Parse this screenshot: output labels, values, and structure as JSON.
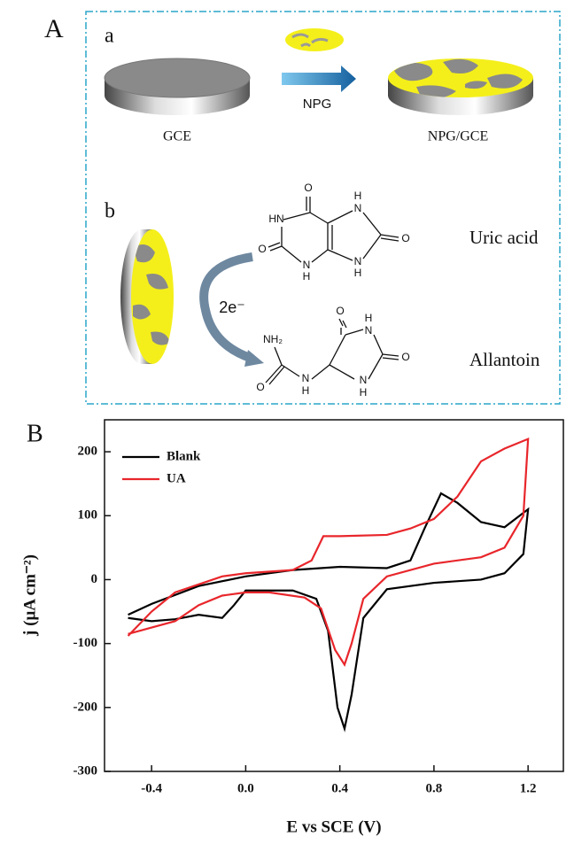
{
  "panel_a": {
    "label": "A",
    "a": {
      "label": "a",
      "left_electrode": "GCE",
      "arrow": "NPG",
      "right_electrode": "NPG/GCE"
    },
    "b": {
      "label": "b",
      "electrons": "2e⁻",
      "uric_acid": {
        "name": "Uric acid",
        "atoms": [
          "O",
          "HN",
          "O",
          "N",
          "H",
          "H",
          "N",
          "O",
          "N",
          "H"
        ]
      },
      "allantoin": {
        "name": "Allantoin",
        "atoms": [
          "NH₂",
          "O",
          "N",
          "H",
          "O",
          "H",
          "N",
          "O",
          "N",
          "H"
        ]
      }
    }
  },
  "chart_data": {
    "type": "line",
    "panel_label": "B",
    "x_label": "E vs SCE (V)",
    "y_label": "j (μA cm⁻²)",
    "xlim": [
      -0.6,
      1.35
    ],
    "ylim": [
      -300,
      250
    ],
    "xticks": [
      -0.4,
      {
        "value": 0,
        "label": "0.0"
      },
      0.4,
      0.8,
      1.2
    ],
    "yticks": [
      -300,
      -200,
      -100,
      0,
      100,
      200
    ],
    "legend": "upper left",
    "series": [
      {
        "name": "Blank",
        "color": "#000000",
        "x": [
          -0.5,
          -0.4,
          -0.2,
          0,
          0.2,
          0.4,
          0.6,
          0.7,
          0.76,
          0.83,
          0.9,
          1.0,
          1.1,
          1.2,
          1.18,
          1.1,
          1.0,
          0.8,
          0.6,
          0.5,
          0.45,
          0.42,
          0.39,
          0.35,
          0.3,
          0.2,
          0,
          -0.05,
          -0.1,
          -0.2,
          -0.3,
          -0.4,
          -0.5
        ],
        "values": [
          -55,
          -38,
          -10,
          5,
          15,
          20,
          18,
          30,
          80,
          135,
          120,
          90,
          82,
          110,
          40,
          10,
          0,
          -5,
          -15,
          -60,
          -180,
          -233,
          -200,
          -80,
          -30,
          -17,
          -17,
          -40,
          -60,
          -55,
          -62,
          -65,
          -60
        ]
      },
      {
        "name": "UA",
        "color": "#e8262b",
        "x": [
          -0.5,
          -0.4,
          -0.3,
          -0.1,
          0,
          0.2,
          0.28,
          0.33,
          0.4,
          0.6,
          0.7,
          0.8,
          0.9,
          1.0,
          1.1,
          1.2,
          1.18,
          1.1,
          1.0,
          0.8,
          0.6,
          0.5,
          0.45,
          0.42,
          0.38,
          0.32,
          0.25,
          0.1,
          0,
          -0.1,
          -0.2,
          -0.3,
          -0.4,
          -0.5
        ],
        "values": [
          -88,
          -50,
          -20,
          5,
          10,
          15,
          30,
          68,
          68,
          70,
          80,
          95,
          130,
          185,
          205,
          220,
          100,
          50,
          35,
          25,
          5,
          -30,
          -100,
          -133,
          -110,
          -45,
          -28,
          -20,
          -20,
          -25,
          -40,
          -65,
          -75,
          -85
        ]
      }
    ]
  }
}
